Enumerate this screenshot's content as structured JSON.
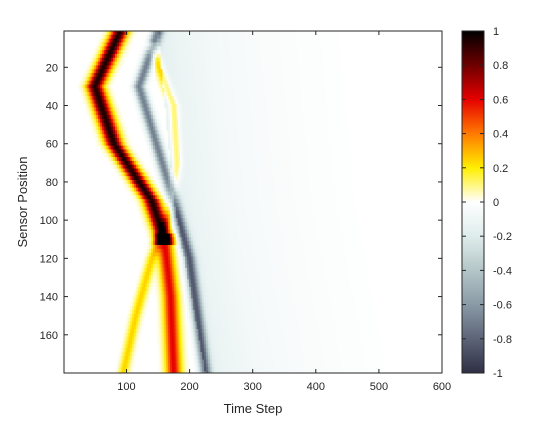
{
  "chart_data": {
    "type": "heatmap",
    "title": "",
    "xlabel": "Time Step",
    "ylabel": "Sensor Position",
    "xlim": [
      1,
      600
    ],
    "ylim": [
      1,
      180
    ],
    "y_direction": "reversed",
    "x_ticks": [
      100,
      200,
      300,
      400,
      500,
      600
    ],
    "y_ticks": [
      20,
      40,
      60,
      80,
      100,
      120,
      140,
      160
    ],
    "colorbar": {
      "range": [
        -1,
        1
      ],
      "ticks": [
        "1",
        "0.8",
        "0.6",
        "0.4",
        "0.2",
        "0",
        "-0.2",
        "-0.4",
        "-0.6",
        "-0.8",
        "-1"
      ],
      "colormap": [
        {
          "v": 1.0,
          "color": "#000000"
        },
        {
          "v": 0.8,
          "color": "#6e0000"
        },
        {
          "v": 0.6,
          "color": "#e60000"
        },
        {
          "v": 0.4,
          "color": "#ff7a00"
        },
        {
          "v": 0.2,
          "color": "#ffee00"
        },
        {
          "v": 0.0,
          "color": "#ffffff"
        },
        {
          "v": -0.2,
          "color": "#dfecec"
        },
        {
          "v": -0.4,
          "color": "#b4c6c8"
        },
        {
          "v": -0.6,
          "color": "#8a9aa6"
        },
        {
          "v": -0.8,
          "color": "#5c6478"
        },
        {
          "v": -1.0,
          "color": "#2f2f45"
        }
      ]
    },
    "features": [
      {
        "name": "main-ridge-upper",
        "peak_value": 0.95,
        "time_at_sensor": [
          [
            1,
            90
          ],
          [
            30,
            50
          ],
          [
            60,
            80
          ],
          [
            90,
            140
          ],
          [
            110,
            160
          ]
        ]
      },
      {
        "name": "main-ridge-lower",
        "peak_value": 0.6,
        "time_at_sensor": [
          [
            110,
            160
          ],
          [
            140,
            170
          ],
          [
            180,
            175
          ]
        ]
      },
      {
        "name": "secondary-ridge",
        "peak_value": 0.25,
        "time_at_sensor": [
          [
            10,
            140
          ],
          [
            40,
            175
          ],
          [
            70,
            180
          ],
          [
            95,
            170
          ],
          [
            120,
            140
          ],
          [
            150,
            115
          ],
          [
            180,
            95
          ]
        ]
      },
      {
        "name": "trailing-negative-band",
        "peak_value": -0.7,
        "time_at_sensor": [
          [
            1,
            150
          ],
          [
            30,
            120
          ],
          [
            90,
            175
          ],
          [
            120,
            200
          ],
          [
            180,
            225
          ]
        ]
      }
    ]
  }
}
